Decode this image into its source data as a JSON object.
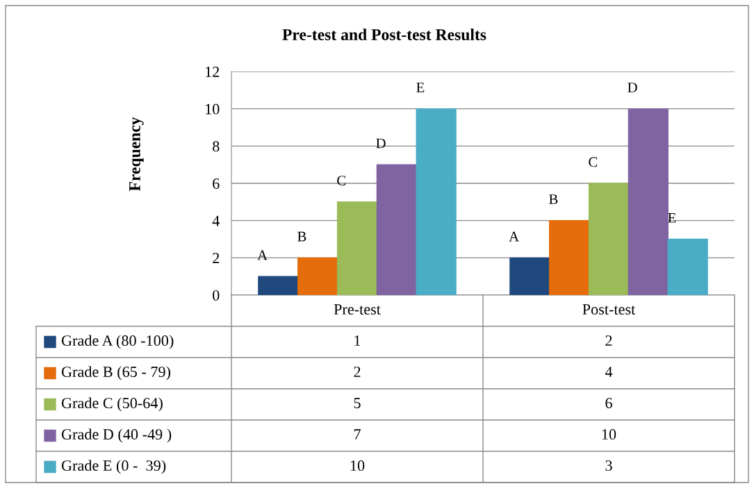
{
  "chart_data": {
    "type": "bar",
    "title": "Pre-test and Post-test Results",
    "ylabel": "Frequency",
    "categories": [
      "Pre-test",
      "Post-test"
    ],
    "series": [
      {
        "name": "Grade A (80 -100)",
        "color": "#1f497d",
        "values": [
          1,
          2
        ]
      },
      {
        "name": "Grade B (65 - 79)",
        "color": "#e46c0a",
        "values": [
          2,
          4
        ]
      },
      {
        "name": "Grade C (50-64)",
        "color": "#9bbb59",
        "values": [
          5,
          6
        ]
      },
      {
        "name": "Grade D (40 -49 )",
        "color": "#8064a2",
        "values": [
          7,
          10
        ]
      },
      {
        "name": "Grade E (0 -  39)",
        "color": "#4bacc6",
        "values": [
          10,
          3
        ]
      }
    ],
    "annotations": [
      "A",
      "B",
      "C",
      "D",
      "E",
      "A",
      "B",
      "C",
      "D",
      "E"
    ],
    "ylim": [
      0,
      12
    ],
    "yticks": [
      0,
      2,
      4,
      6,
      8,
      10,
      12
    ],
    "grid": "y",
    "legend": "bottom",
    "data_labels": true
  }
}
